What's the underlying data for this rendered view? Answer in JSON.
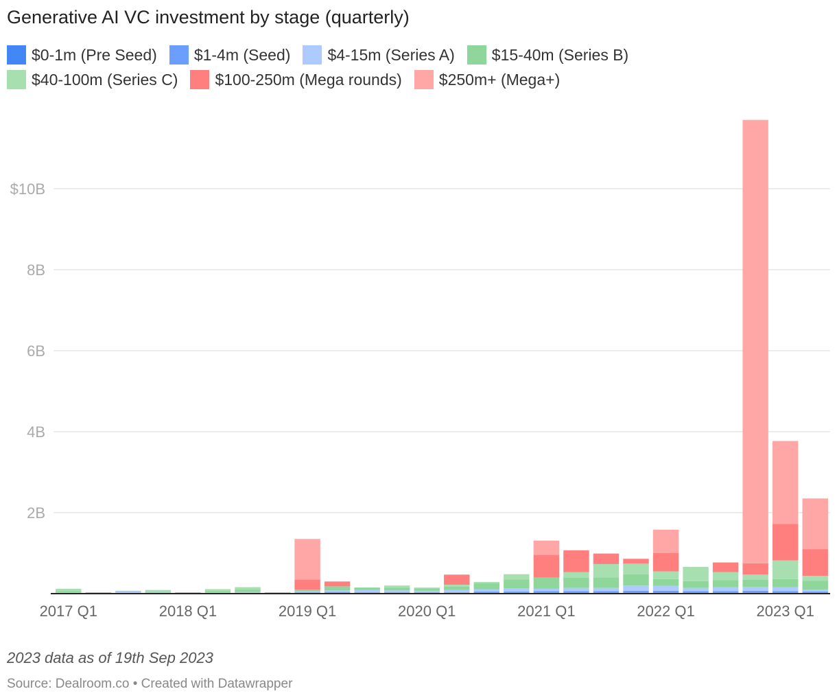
{
  "title": "Generative AI VC investment by stage (quarterly)",
  "note": "2023 data as of 19th Sep 2023",
  "source": "Source: Dealroom.co • Created with Datawrapper",
  "colors": {
    "grid": "#e5e5e5",
    "tick_text": "#aaaaaa",
    "xtick_text": "#666666",
    "axis": "#222222"
  },
  "chart_data": {
    "type": "bar",
    "stacked": true,
    "title": "Generative AI VC investment by stage (quarterly)",
    "ylim": [
      0,
      12
    ],
    "y_unit": "billion USD",
    "y_ticks": [
      {
        "value": 2,
        "label": "2B"
      },
      {
        "value": 4,
        "label": "4B"
      },
      {
        "value": 6,
        "label": "6B"
      },
      {
        "value": 8,
        "label": "8B"
      },
      {
        "value": 10,
        "label": "$10B"
      }
    ],
    "categories": [
      "2017 Q1",
      "2017 Q2",
      "2017 Q3",
      "2017 Q4",
      "2018 Q1",
      "2018 Q2",
      "2018 Q3",
      "2018 Q4",
      "2019 Q1",
      "2019 Q2",
      "2019 Q3",
      "2019 Q4",
      "2020 Q1",
      "2020 Q2",
      "2020 Q3",
      "2020 Q4",
      "2021 Q1",
      "2021 Q2",
      "2021 Q3",
      "2021 Q4",
      "2022 Q1",
      "2022 Q2",
      "2022 Q3",
      "2022 Q4",
      "2023 Q1",
      "2023 Q2"
    ],
    "x_tick_labels": [
      {
        "index": 0,
        "label": "2017 Q1"
      },
      {
        "index": 4,
        "label": "2018 Q1"
      },
      {
        "index": 8,
        "label": "2019 Q1"
      },
      {
        "index": 12,
        "label": "2020 Q1"
      },
      {
        "index": 16,
        "label": "2021 Q1"
      },
      {
        "index": 20,
        "label": "2022 Q1"
      },
      {
        "index": 24,
        "label": "2023 Q1"
      }
    ],
    "legend": "top",
    "grid": true,
    "series": [
      {
        "name": "$0-1m (Pre Seed)",
        "color": "#4287f5",
        "values": [
          0.01,
          0.005,
          0.01,
          0.01,
          0.005,
          0.01,
          0.01,
          0.005,
          0.01,
          0.02,
          0.01,
          0.01,
          0.01,
          0.01,
          0.02,
          0.02,
          0.02,
          0.02,
          0.02,
          0.02,
          0.02,
          0.02,
          0.02,
          0.02,
          0.02,
          0.02
        ]
      },
      {
        "name": "$1-4m (Seed)",
        "color": "#6b9eff",
        "values": [
          0.01,
          0.01,
          0.01,
          0.01,
          0.01,
          0.01,
          0.01,
          0.01,
          0.02,
          0.02,
          0.02,
          0.02,
          0.02,
          0.02,
          0.03,
          0.03,
          0.04,
          0.04,
          0.04,
          0.05,
          0.05,
          0.04,
          0.04,
          0.05,
          0.04,
          0.03
        ]
      },
      {
        "name": "$4-15m (Series A)",
        "color": "#aecbff",
        "values": [
          0.01,
          0.01,
          0.04,
          0.02,
          0.01,
          0.01,
          0.02,
          0.01,
          0.03,
          0.04,
          0.06,
          0.05,
          0.04,
          0.06,
          0.06,
          0.08,
          0.06,
          0.08,
          0.08,
          0.13,
          0.12,
          0.08,
          0.1,
          0.1,
          0.1,
          0.05
        ]
      },
      {
        "name": "$15-40m (Series B)",
        "color": "#8fd69a",
        "values": [
          0.03,
          0.01,
          0.01,
          0.01,
          0.01,
          0.03,
          0.06,
          0.01,
          0.04,
          0.1,
          0.06,
          0.07,
          0.06,
          0.08,
          0.15,
          0.22,
          0.28,
          0.25,
          0.26,
          0.28,
          0.17,
          0.17,
          0.17,
          0.17,
          0.2,
          0.22
        ]
      },
      {
        "name": "$40-100m (Series C)",
        "color": "#a8dfb0",
        "values": [
          0.06,
          0.0,
          0.0,
          0.04,
          0.0,
          0.05,
          0.06,
          0.0,
          0.0,
          0.0,
          0.0,
          0.05,
          0.02,
          0.05,
          0.03,
          0.13,
          0.0,
          0.14,
          0.33,
          0.26,
          0.19,
          0.35,
          0.2,
          0.13,
          0.46,
          0.12
        ]
      },
      {
        "name": "$100-250m (Mega rounds)",
        "color": "#ff7f7f",
        "values": [
          0,
          0,
          0,
          0,
          0,
          0,
          0,
          0,
          0.25,
          0.12,
          0,
          0,
          0,
          0.25,
          0,
          0,
          0.56,
          0.54,
          0.26,
          0.12,
          0.45,
          0,
          0.24,
          0.28,
          0.9,
          0.66
        ]
      },
      {
        "name": "$250m+ (Mega+)",
        "color": "#ffa6a6",
        "values": [
          0,
          0,
          0,
          0,
          0,
          0,
          0,
          0,
          1.0,
          0,
          0,
          0,
          0,
          0,
          0,
          0,
          0.35,
          0,
          0,
          0,
          0.58,
          0,
          0,
          10.95,
          2.05,
          1.25
        ]
      }
    ]
  }
}
